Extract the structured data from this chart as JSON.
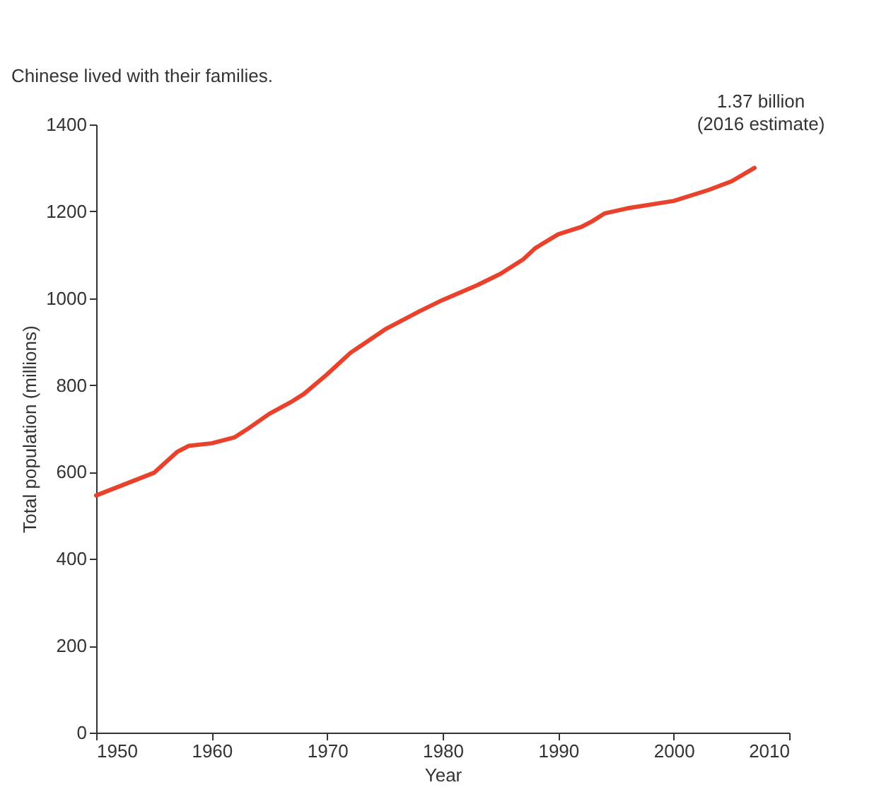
{
  "chart_data": {
    "type": "line",
    "xlabel": "Year",
    "ylabel": "Total population (millions)",
    "annotations": [
      "1.37 billion\n(2016 estimate)",
      "Chinese lived with their families."
    ],
    "series": [
      {
        "color": "#e8412c",
        "x": [
          1950,
          1955,
          1957,
          1958,
          1960,
          1962,
          1963,
          1965,
          1967,
          1968,
          1970,
          1972,
          1975,
          1978,
          1980,
          1983,
          1985,
          1987,
          1988,
          1990,
          1992,
          1993,
          1994,
          1996,
          2000,
          2003,
          2005,
          2007
        ],
        "values": [
          546,
          598,
          646,
          660,
          666,
          680,
          697,
          734,
          763,
          780,
          825,
          874,
          928,
          970,
          996,
          1030,
          1056,
          1090,
          1115,
          1147,
          1164,
          1178,
          1195,
          1207,
          1224,
          1249,
          1269,
          1300
        ]
      }
    ],
    "xlim": [
      1950,
      2010
    ],
    "xticks": [
      1950,
      1960,
      1970,
      1980,
      1990,
      2000,
      2010
    ],
    "ylim": [
      0,
      1400
    ],
    "yticks": [
      0,
      200,
      400,
      600,
      800,
      1000,
      1200,
      1400
    ],
    "grid": false,
    "marker": "none",
    "line_style": "solid"
  }
}
